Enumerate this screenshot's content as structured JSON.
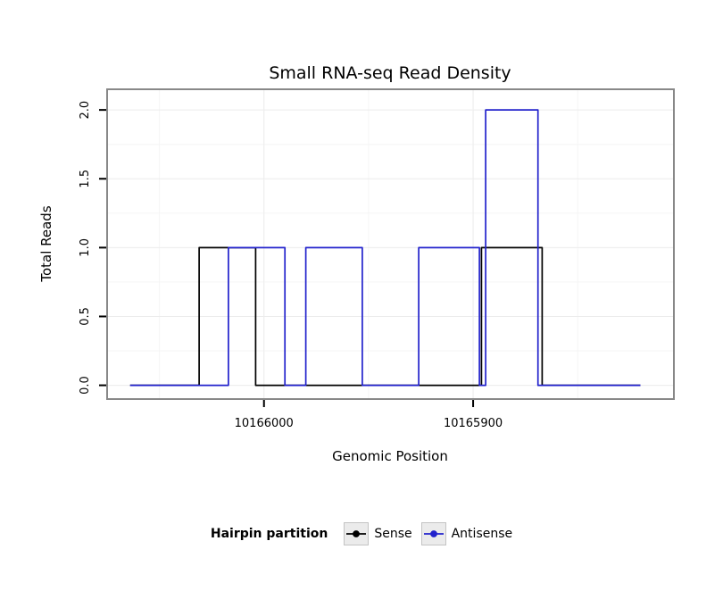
{
  "chart_data": {
    "type": "line",
    "title": "Small RNA-seq Read Density",
    "xlabel": "Genomic Position",
    "ylabel": "Total Reads",
    "x_axis": {
      "reversed": true,
      "range_left_to_right": [
        10166075,
        10165804
      ],
      "ticks": [
        10166000,
        10165900
      ],
      "tick_labels": [
        "10166000",
        "10165900"
      ]
    },
    "y_axis": {
      "range": [
        -0.1,
        2.15
      ],
      "ticks": [
        0,
        0.5,
        1,
        1.5,
        2
      ],
      "tick_labels": [
        "0.0",
        "0.5",
        "1.0",
        "1.5",
        "2.0"
      ]
    },
    "grid": true,
    "panel_border_color": "#888888",
    "legend": {
      "title": "Hairpin partition",
      "position": "bottom"
    },
    "series": [
      {
        "name": "Sense",
        "color": "#000000",
        "points": [
          [
            10166064,
            0
          ],
          [
            10166031,
            0
          ],
          [
            10166031,
            1
          ],
          [
            10166004,
            1
          ],
          [
            10166004,
            0
          ],
          [
            10165896,
            0
          ],
          [
            10165896,
            1
          ],
          [
            10165867,
            1
          ],
          [
            10165867,
            0
          ],
          [
            10165820,
            0
          ]
        ]
      },
      {
        "name": "Antisense",
        "color": "#2222cc",
        "points": [
          [
            10166064,
            0
          ],
          [
            10166017,
            0
          ],
          [
            10166017,
            1
          ],
          [
            10165990,
            1
          ],
          [
            10165990,
            0
          ],
          [
            10165980,
            0
          ],
          [
            10165980,
            1
          ],
          [
            10165953,
            1
          ],
          [
            10165953,
            0
          ],
          [
            10165926,
            0
          ],
          [
            10165926,
            1
          ],
          [
            10165897,
            1
          ],
          [
            10165897,
            0
          ],
          [
            10165894,
            0
          ],
          [
            10165894,
            2
          ],
          [
            10165869,
            2
          ],
          [
            10165869,
            0
          ],
          [
            10165820,
            0
          ]
        ]
      }
    ]
  }
}
